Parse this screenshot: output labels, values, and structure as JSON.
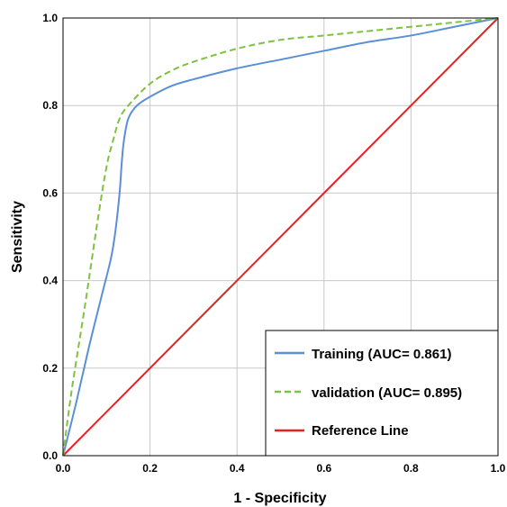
{
  "chart_data": {
    "type": "line",
    "title": "",
    "xlabel": "1 - Specificity",
    "ylabel": "Sensitivity",
    "xlim": [
      0,
      1
    ],
    "ylim": [
      0,
      1
    ],
    "x_ticks": [
      "0.0",
      "0.2",
      "0.4",
      "0.6",
      "0.8",
      "1.0"
    ],
    "y_ticks": [
      "0.0",
      "0.2",
      "0.4",
      "0.6",
      "0.8",
      "1.0"
    ],
    "grid": true,
    "legend_position": "bottom-right",
    "series": [
      {
        "name": "Training (AUC= 0.861)",
        "color": "#5b8fd6",
        "style": "solid",
        "x": [
          0,
          0.03,
          0.06,
          0.09,
          0.11,
          0.12,
          0.13,
          0.135,
          0.14,
          0.15,
          0.17,
          0.2,
          0.25,
          0.3,
          0.4,
          0.5,
          0.6,
          0.7,
          0.8,
          0.9,
          1.0
        ],
        "y": [
          0,
          0.12,
          0.25,
          0.37,
          0.45,
          0.51,
          0.6,
          0.67,
          0.72,
          0.77,
          0.8,
          0.82,
          0.845,
          0.86,
          0.885,
          0.905,
          0.925,
          0.945,
          0.96,
          0.98,
          1.0
        ]
      },
      {
        "name": "validation (AUC= 0.895)",
        "color": "#7ec242",
        "style": "dashed",
        "x": [
          0,
          0.02,
          0.05,
          0.08,
          0.1,
          0.115,
          0.13,
          0.15,
          0.2,
          0.25,
          0.3,
          0.4,
          0.5,
          0.6,
          0.7,
          0.8,
          0.9,
          1.0
        ],
        "y": [
          0,
          0.15,
          0.34,
          0.54,
          0.66,
          0.72,
          0.77,
          0.8,
          0.85,
          0.88,
          0.9,
          0.93,
          0.95,
          0.96,
          0.97,
          0.98,
          0.99,
          1.0
        ]
      },
      {
        "name": "Reference Line",
        "color": "#e32222",
        "style": "solid",
        "x": [
          0,
          1
        ],
        "y": [
          0,
          1
        ]
      }
    ]
  }
}
